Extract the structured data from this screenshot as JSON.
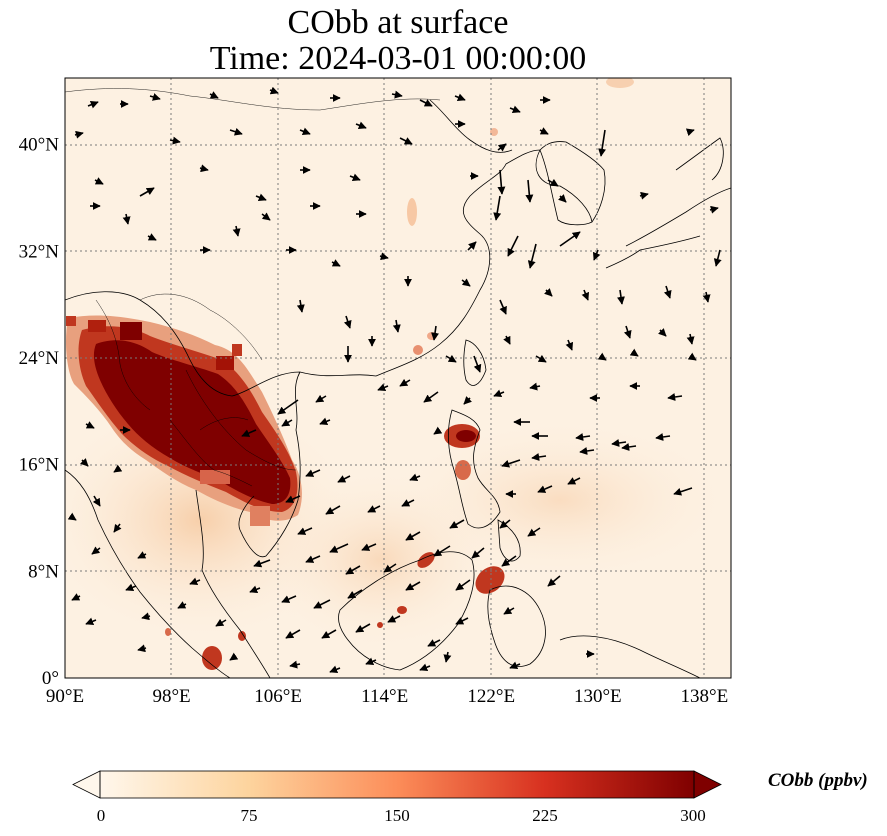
{
  "title": "CObb at surface",
  "subtitle": "Time: 2024-03-01 00:00:00",
  "map": {
    "lon_range": [
      90,
      140
    ],
    "lat_range": [
      0,
      45
    ],
    "x_ticks": [
      "90°E",
      "98°E",
      "106°E",
      "114°E",
      "122°E",
      "130°E",
      "138°E"
    ],
    "y_ticks": [
      "0°",
      "8°N",
      "16°N",
      "24°N",
      "32°N",
      "40°N"
    ],
    "gridlines": true,
    "features": [
      "coastlines",
      "country borders",
      "wind vectors"
    ]
  },
  "colorbar": {
    "label": "CObb (ppbv)",
    "ticks": [
      "0",
      "75",
      "150",
      "225",
      "300"
    ],
    "range": [
      0,
      300
    ],
    "extend": "both",
    "colormap": "OrRd",
    "colors": [
      "#fff7ec",
      "#fdd49e",
      "#fc8d59",
      "#d7301f",
      "#7f0000"
    ]
  }
}
